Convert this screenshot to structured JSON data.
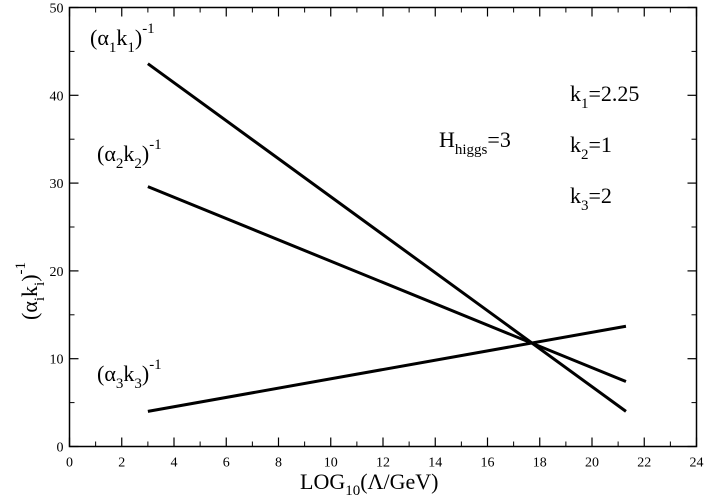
{
  "chart_data": {
    "type": "line",
    "xlabel": {
      "base": "LOG",
      "sub": "10",
      "rest": "(Λ/GeV)"
    },
    "ylabel": {
      "open": "(α",
      "sub_i1": "i",
      "k": "k",
      "sub_i2": "i",
      "close": ")",
      "sup": "-1"
    },
    "xlim": [
      0,
      24
    ],
    "ylim": [
      0,
      50
    ],
    "xticks": [
      0,
      2,
      4,
      6,
      8,
      10,
      12,
      14,
      16,
      18,
      20,
      22,
      24
    ],
    "yticks": [
      0,
      10,
      20,
      30,
      40,
      50
    ],
    "series": [
      {
        "label": {
          "open": "(α",
          "sub1": "1",
          "k": "k",
          "sub2": "1",
          "close": ")",
          "sup": "-1"
        },
        "x": [
          3.0,
          21.3
        ],
        "y": [
          43.6,
          4.0
        ]
      },
      {
        "label": {
          "open": "(α",
          "sub1": "2",
          "k": "k",
          "sub2": "2",
          "close": ")",
          "sup": "-1"
        },
        "x": [
          3.0,
          21.3
        ],
        "y": [
          29.6,
          7.4
        ]
      },
      {
        "label": {
          "open": "(α",
          "sub1": "3",
          "k": "k",
          "sub2": "3",
          "close": ")",
          "sup": "-1"
        },
        "x": [
          3.0,
          21.3
        ],
        "y": [
          4.0,
          13.7
        ]
      }
    ],
    "annotations": {
      "higgs": {
        "base": "H",
        "sub": "higgs",
        "rest": "=3"
      },
      "k1": {
        "base": "k",
        "sub": "1",
        "rest": "=2.25"
      },
      "k2": {
        "base": "k",
        "sub": "2",
        "rest": "=1"
      },
      "k3": {
        "base": "k",
        "sub": "3",
        "rest": "=2"
      }
    }
  }
}
